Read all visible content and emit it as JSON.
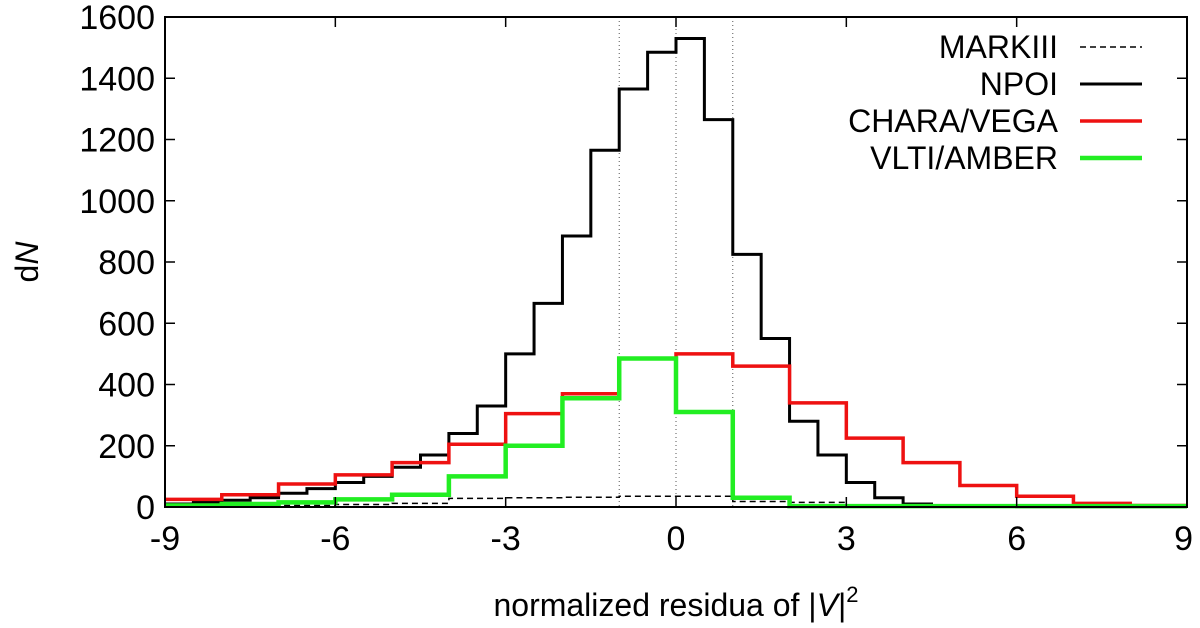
{
  "chart_data": {
    "type": "line",
    "subtype": "step-histogram",
    "title": "",
    "xlabel_parts": {
      "prefix": "normalized residua of |",
      "var": "V",
      "suffix": "|",
      "sup": "2"
    },
    "ylabel_parts": {
      "prefix": "d",
      "var": "N"
    },
    "xlim": [
      -9,
      9
    ],
    "ylim": [
      0,
      1600
    ],
    "xticks": [
      -9,
      -6,
      -3,
      0,
      3,
      6,
      9
    ],
    "xtick_labels": [
      "-9",
      "-6",
      "-3",
      "0",
      "3",
      "6",
      "9"
    ],
    "yticks": [
      0,
      200,
      400,
      600,
      800,
      1000,
      1200,
      1400,
      1600
    ],
    "ytick_labels": [
      "0",
      "200",
      "400",
      "600",
      "800",
      "1000",
      "1200",
      "1400",
      "1600"
    ],
    "reference_lines_x": [
      -1,
      0,
      1
    ],
    "legend_position": "top-right",
    "series": [
      {
        "name": "MARKIII",
        "color": "#000000",
        "style": "dashed",
        "bin_edges": [
          -9,
          -8,
          -7,
          -6,
          -5,
          -4,
          -3,
          -2,
          -1,
          0,
          1,
          2,
          3,
          4,
          5,
          6,
          7,
          8,
          9
        ],
        "values": [
          2,
          3,
          5,
          8,
          12,
          28,
          30,
          32,
          35,
          35,
          18,
          15,
          6,
          4,
          2,
          1,
          1,
          1
        ]
      },
      {
        "name": "NPOI",
        "color": "#000000",
        "style": "solid",
        "bin_edges": [
          -9,
          -8.5,
          -8,
          -7.5,
          -7,
          -6.5,
          -6,
          -5.5,
          -5,
          -4.5,
          -4,
          -3.5,
          -3,
          -2.5,
          -2,
          -1.5,
          -1,
          -0.5,
          0,
          0.5,
          1,
          1.5,
          2,
          2.5,
          3,
          3.5,
          4,
          4.5,
          5,
          5.5,
          6,
          6.5,
          7,
          7.5,
          8,
          8.5,
          9
        ],
        "values": [
          10,
          15,
          22,
          30,
          45,
          60,
          80,
          100,
          130,
          170,
          240,
          330,
          500,
          665,
          885,
          1165,
          1365,
          1485,
          1530,
          1265,
          825,
          550,
          280,
          170,
          80,
          30,
          10,
          5,
          3,
          2,
          1,
          1,
          1,
          1,
          1,
          1
        ]
      },
      {
        "name": "CHARA/VEGA",
        "color": "#ee1111",
        "style": "solid",
        "bin_edges": [
          -9,
          -8,
          -7,
          -6,
          -5,
          -4,
          -3,
          -2,
          -1,
          0,
          1,
          2,
          3,
          4,
          5,
          6,
          7,
          8,
          9
        ],
        "values": [
          25,
          40,
          75,
          105,
          145,
          205,
          305,
          370,
          485,
          500,
          460,
          340,
          225,
          145,
          70,
          35,
          12,
          5
        ]
      },
      {
        "name": "VLTI/AMBER",
        "color": "#22ee22",
        "style": "solid",
        "bin_edges": [
          -9,
          -8,
          -7,
          -6,
          -5,
          -4,
          -3,
          -2,
          -1,
          0,
          1,
          2,
          3,
          4,
          5,
          6,
          7,
          8,
          9
        ],
        "values": [
          5,
          10,
          15,
          25,
          40,
          100,
          200,
          355,
          485,
          310,
          30,
          3,
          3,
          3,
          3,
          3,
          3,
          3
        ]
      }
    ]
  }
}
